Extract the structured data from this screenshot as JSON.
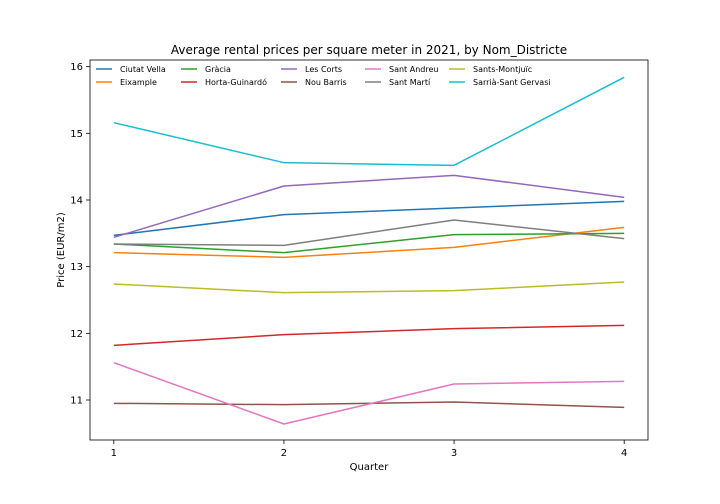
{
  "chart_data": {
    "type": "line",
    "title": "Average rental prices per square meter in 2021, by Nom_Districte",
    "xlabel": "Quarter",
    "ylabel": "Price (EUR/m2)",
    "x": [
      1,
      2,
      3,
      4
    ],
    "xticks": [
      "1",
      "2",
      "3",
      "4"
    ],
    "yticks": [
      "11",
      "12",
      "13",
      "14",
      "15",
      "16"
    ],
    "xlim": [
      0.86,
      4.14
    ],
    "ylim": [
      10.4,
      16.1
    ],
    "grid": false,
    "legend_placement": "top-left",
    "legend_columns": 6,
    "series": [
      {
        "name": "Ciutat Vella",
        "color": "#1f77b4",
        "values": [
          13.47,
          13.78,
          13.88,
          13.98
        ]
      },
      {
        "name": "Eixample",
        "color": "#ff7f0e",
        "values": [
          13.21,
          13.14,
          13.29,
          13.59
        ]
      },
      {
        "name": "Gràcia",
        "color": "#2ca02c",
        "values": [
          13.34,
          13.21,
          13.48,
          13.5
        ]
      },
      {
        "name": "Horta-Guinardó",
        "color": "#d62728",
        "values": [
          11.82,
          11.98,
          12.07,
          12.12
        ]
      },
      {
        "name": "Les Corts",
        "color": "#9467bd",
        "values": [
          13.44,
          14.21,
          14.37,
          14.04
        ]
      },
      {
        "name": "Nou Barris",
        "color": "#8c564b",
        "values": [
          10.95,
          10.93,
          10.97,
          10.89
        ]
      },
      {
        "name": "Sant Andreu",
        "color": "#e377c2",
        "values": [
          11.56,
          10.64,
          11.24,
          11.28
        ]
      },
      {
        "name": "Sant Martí",
        "color": "#7f7f7f",
        "values": [
          13.34,
          13.32,
          13.7,
          13.42
        ]
      },
      {
        "name": "Sants-Montjuïc",
        "color": "#bcbd22",
        "values": [
          12.74,
          12.61,
          12.64,
          12.77
        ]
      },
      {
        "name": "Sarrià-Sant Gervasi",
        "color": "#17becf",
        "values": [
          15.16,
          14.56,
          14.52,
          15.84
        ]
      }
    ]
  }
}
